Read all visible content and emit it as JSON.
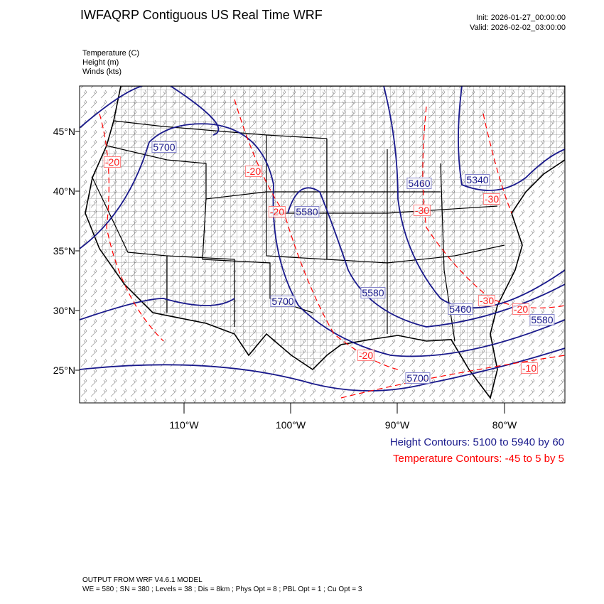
{
  "header": {
    "title": "IWFAQRP Contiguous US Real Time WRF",
    "init": "Init: 2026-01-27_00:00:00",
    "valid": "Valid: 2026-02-02_03:00:00"
  },
  "variables": [
    "Temperature   (C)",
    "Height   (m)",
    "Winds   (kts)"
  ],
  "map": {
    "lat_labels": [
      "45°N",
      "40°N",
      "35°N",
      "30°N",
      "25°N"
    ],
    "lon_labels": [
      "110°W",
      "100°W",
      "90°W",
      "80°W"
    ],
    "height_labels": [
      "5700",
      "5580",
      "5460",
      "5340",
      "5580",
      "5700",
      "5460",
      "5580",
      "5700"
    ],
    "temp_labels": [
      "-20",
      "-20",
      "-20",
      "-30",
      "-30",
      "-30",
      "-20",
      "-20",
      "-10"
    ],
    "colors": {
      "height": "#1a1a8c",
      "temperature": "#ff0000",
      "boundaries": "#000000",
      "winds": "#808080"
    }
  },
  "legend": {
    "height": "Height Contours: 5100 to 5940 by 60",
    "temperature": "Temperature Contours: -45 to 5 by 5"
  },
  "footer": {
    "line1": "OUTPUT FROM WRF V4.6.1 MODEL",
    "line2": "WE = 580 ; SN = 380 ; Levels = 38 ; Dis = 8km ; Phys Opt = 8 ; PBL Opt = 1 ; Cu Opt = 3"
  }
}
